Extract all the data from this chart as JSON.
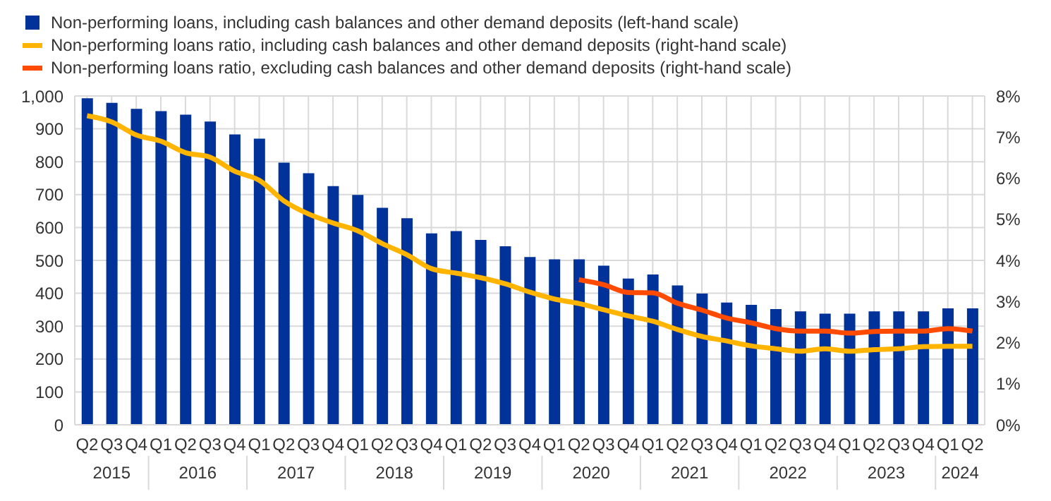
{
  "chart_data": {
    "type": "bar",
    "categories": [
      "Q2",
      "Q3",
      "Q4",
      "Q1",
      "Q2",
      "Q3",
      "Q4",
      "Q1",
      "Q2",
      "Q3",
      "Q4",
      "Q1",
      "Q2",
      "Q3",
      "Q4",
      "Q1",
      "Q2",
      "Q3",
      "Q4",
      "Q1",
      "Q2",
      "Q3",
      "Q4",
      "Q1",
      "Q2",
      "Q3",
      "Q4",
      "Q1",
      "Q2",
      "Q3",
      "Q4",
      "Q1",
      "Q2",
      "Q3",
      "Q4",
      "Q1",
      "Q2"
    ],
    "annotations": [
      "2015",
      "2016",
      "2017",
      "2018",
      "2019",
      "2020",
      "2021",
      "2022",
      "2023",
      "2024"
    ],
    "series": [
      {
        "name": "Non-performing loans, including cash balances and other demand deposits (left-hand scale)",
        "color": "#003299",
        "values": [
          993,
          979,
          961,
          954,
          943,
          922,
          883,
          870,
          797,
          765,
          726,
          699,
          660,
          628,
          582,
          589,
          562,
          543,
          510,
          503,
          503,
          484,
          445,
          457,
          424,
          399,
          372,
          365,
          352,
          345,
          338,
          338,
          345,
          345,
          345,
          354,
          354
        ]
      },
      {
        "name": "Non-performing loans ratio, including cash balances and other demand deposits (right-hand scale)",
        "type": "line",
        "axis": "y2",
        "color": "#ffb400",
        "values": [
          7.52,
          7.37,
          7.05,
          6.9,
          6.62,
          6.51,
          6.17,
          5.95,
          5.45,
          5.13,
          4.91,
          4.72,
          4.41,
          4.14,
          3.8,
          3.69,
          3.58,
          3.43,
          3.23,
          3.06,
          2.95,
          2.8,
          2.65,
          2.52,
          2.32,
          2.15,
          2.04,
          1.92,
          1.85,
          1.79,
          1.85,
          1.79,
          1.83,
          1.85,
          1.9,
          1.91,
          1.91
        ]
      },
      {
        "name": "Non-performing loans ratio, excluding cash balances and other demand deposits (right-hand scale)",
        "type": "line",
        "axis": "y2",
        "color": "#ff4b00",
        "values": [
          null,
          null,
          null,
          null,
          null,
          null,
          null,
          null,
          null,
          null,
          null,
          null,
          null,
          null,
          null,
          null,
          null,
          null,
          null,
          null,
          3.53,
          3.41,
          3.22,
          3.21,
          2.96,
          2.79,
          2.6,
          2.48,
          2.34,
          2.28,
          2.28,
          2.23,
          2.27,
          2.28,
          2.28,
          2.34,
          2.28
        ]
      }
    ],
    "ylim": [
      0,
      1000
    ],
    "yticks": [
      0,
      100,
      200,
      300,
      400,
      500,
      600,
      700,
      800,
      900,
      {
        "value": 1000,
        "label": "1,000"
      }
    ],
    "y2lim": [
      0,
      8
    ],
    "y2ticks": [
      {
        "value": 0,
        "label": "0%"
      },
      {
        "value": 1,
        "label": "1%"
      },
      {
        "value": 2,
        "label": "2%"
      },
      {
        "value": 3,
        "label": "3%"
      },
      {
        "value": 4,
        "label": "4%"
      },
      {
        "value": 5,
        "label": "5%"
      },
      {
        "value": 6,
        "label": "6%"
      },
      {
        "value": 7,
        "label": "7%"
      },
      {
        "value": 8,
        "label": "8%"
      }
    ],
    "grid": true,
    "legend": "top left",
    "marker": "none",
    "line_style": "solid"
  }
}
